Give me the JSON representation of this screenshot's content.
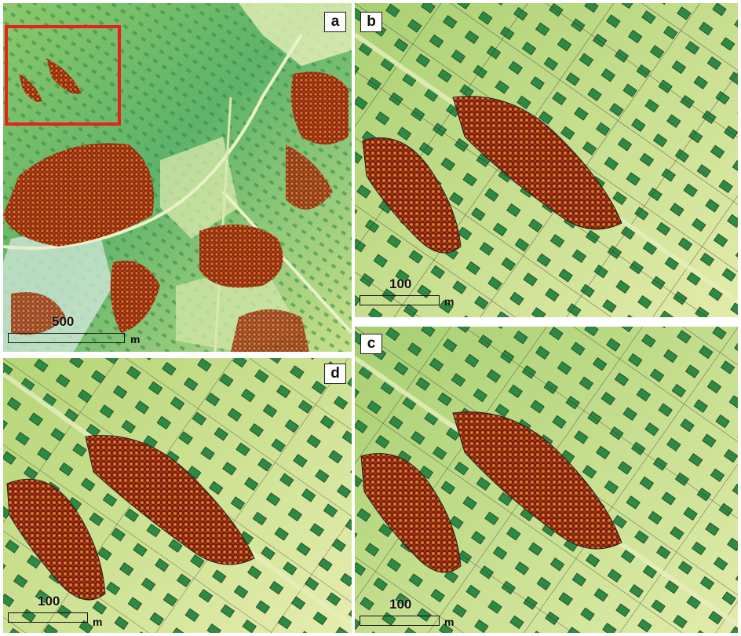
{
  "panels": {
    "a": {
      "label": "a",
      "scale_value": "500",
      "scale_unit": "m"
    },
    "b": {
      "label": "b",
      "scale_value": "100",
      "scale_unit": "m"
    },
    "c": {
      "label": "c",
      "scale_value": "100",
      "scale_unit": "m"
    },
    "d": {
      "label": "d",
      "scale_value": "100",
      "scale_unit": "m"
    }
  },
  "colors": {
    "background_light": "#e6ecaa",
    "background_mid": "#bcd97a",
    "grass": "#7fc05c",
    "building": "#2e8a43",
    "tree_orange": "#d8762a",
    "tree_dark": "#7a1f0f",
    "segment_line": "#222222",
    "inset_frame": "#e8211d"
  }
}
